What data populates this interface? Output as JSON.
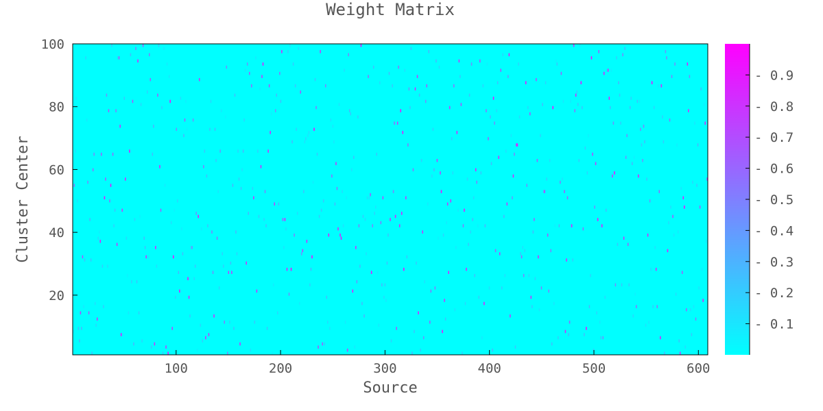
{
  "chart_data": {
    "type": "heatmap",
    "title": "Weight Matrix",
    "xlabel": "Source",
    "ylabel": "Cluster Center",
    "xlim": [
      1,
      609
    ],
    "ylim": [
      1,
      100
    ],
    "x_ticks": [
      100,
      200,
      300,
      400,
      500,
      600
    ],
    "y_ticks": [
      20,
      40,
      60,
      80,
      100
    ],
    "colorbar": {
      "range": [
        0,
        1
      ],
      "ticks": [
        0.1,
        0.2,
        0.3,
        0.4,
        0.5,
        0.6,
        0.7,
        0.8,
        0.9
      ],
      "colormap": "cool",
      "color_low": "#00ffff",
      "color_high": "#ff00ff"
    },
    "grid": false,
    "background_value": 0.0,
    "sparse_cells_per_source": 1,
    "random_seed": 20231
  }
}
